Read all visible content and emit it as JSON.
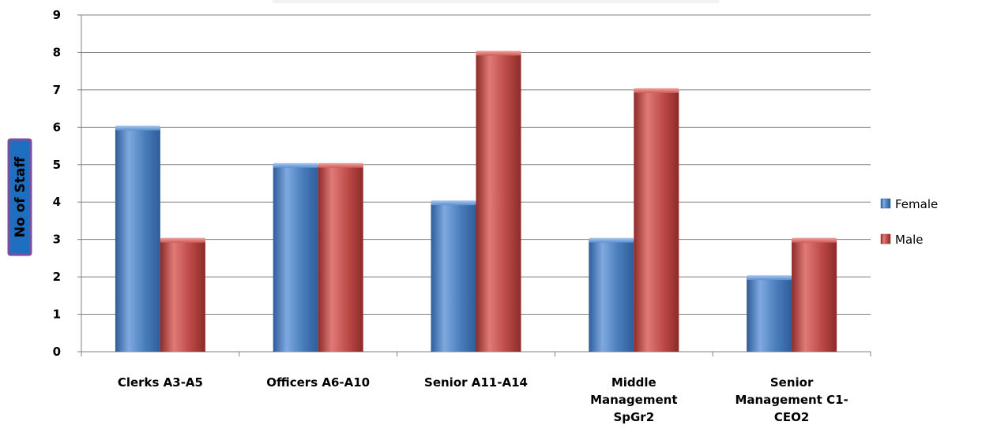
{
  "chart_data": {
    "type": "bar",
    "title": "",
    "xlabel": "",
    "ylabel": "No of Staff",
    "ylim": [
      0,
      9
    ],
    "yticks": [
      0,
      1,
      2,
      3,
      4,
      5,
      6,
      7,
      8,
      9
    ],
    "categories": [
      [
        "Clerks A3-A5"
      ],
      [
        "Officers A6-A10"
      ],
      [
        "Senior A11-A14"
      ],
      [
        "Middle",
        "Management",
        "SpGr2"
      ],
      [
        "Senior",
        "Management C1-",
        "CEO2"
      ]
    ],
    "series": [
      {
        "name": "Female",
        "values": [
          6,
          5,
          4,
          3,
          2
        ],
        "color": "#4a7ebb"
      },
      {
        "name": "Male",
        "values": [
          3,
          5,
          8,
          7,
          3
        ],
        "color": "#be4b48"
      }
    ],
    "grid": true,
    "legend_position": "right",
    "colors": {
      "female_light": "#7fa9e0",
      "female_dark": "#2e5d9a",
      "male_light": "#e07a77",
      "male_dark": "#8c2b29",
      "ylabel_bg": "#1f6fc0",
      "ylabel_border": "#7b4f9d",
      "grid": "#808080"
    }
  }
}
